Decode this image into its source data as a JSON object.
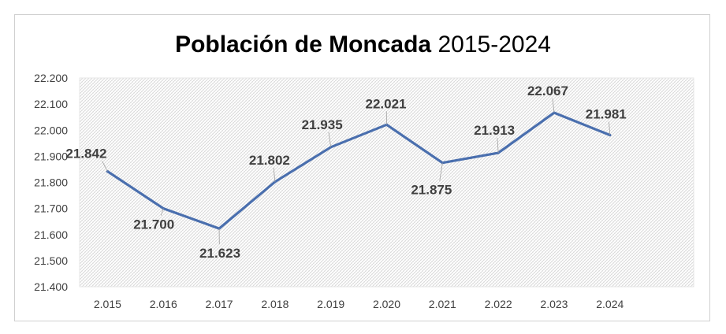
{
  "chart_data": {
    "type": "line",
    "title": "Población de Moncada",
    "subtitle": "2015-2024",
    "categories": [
      "2.015",
      "2.016",
      "2.017",
      "2.018",
      "2.019",
      "2.020",
      "2.021",
      "2.022",
      "2.023",
      "2.024"
    ],
    "series": [
      {
        "values": [
          21842,
          21700,
          21623,
          21802,
          21935,
          22021,
          21875,
          21913,
          22067,
          21981
        ],
        "labels": [
          "21.842",
          "21.700",
          "21.623",
          "21.802",
          "21.935",
          "22.021",
          "21.875",
          "21.913",
          "22.067",
          "21.981"
        ],
        "color": "#4a6fae"
      }
    ],
    "ylim": [
      21400,
      22200
    ],
    "yticks": [
      "21.400",
      "21.500",
      "21.600",
      "21.700",
      "21.800",
      "21.900",
      "22.000",
      "22.100",
      "22.200"
    ],
    "xlabel": "",
    "ylabel": "",
    "plot_background": "hatched",
    "grid": false,
    "legend": "none"
  }
}
